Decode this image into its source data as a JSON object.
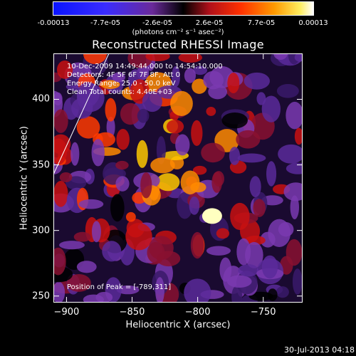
{
  "colorbar": {
    "tick_labels": [
      "-0.00013",
      "-7.7e-05",
      "-2.6e-05",
      "2.6e-05",
      "7.7e-05",
      "0.00013"
    ],
    "units": "(photons cm⁻² s⁻¹ asec⁻²)",
    "range": [
      -0.00013,
      0.00013
    ]
  },
  "chart_data": {
    "type": "heatmap",
    "title": "Reconstructed RHESSI Image",
    "xlabel": "Heliocentric X (arcsec)",
    "ylabel": "Heliocentric Y (arcsec)",
    "xlim": [
      -910,
      -720
    ],
    "ylim": [
      245,
      435
    ],
    "x_ticks": [
      "-900",
      "-850",
      "-800",
      "-750"
    ],
    "y_ticks": [
      "250",
      "300",
      "350",
      "400"
    ],
    "peak": {
      "x": -789,
      "y": 311
    },
    "colormap": "black-purple-red-orange-yellow-white"
  },
  "annotations": {
    "time": "10-Dec-2009 14:49:44.000 to 14:54:10.000",
    "detectors": "Detectors: 4F 5F 6F 7F 8F, Att 0",
    "energy": "Energy Range: 25.0 - 50.0 keV",
    "clean": "Clean    Total counts: 4.40E+03",
    "peak_text": "Position of Peak = [-789,311]"
  },
  "footer": "30-Jul-2013 04:18"
}
